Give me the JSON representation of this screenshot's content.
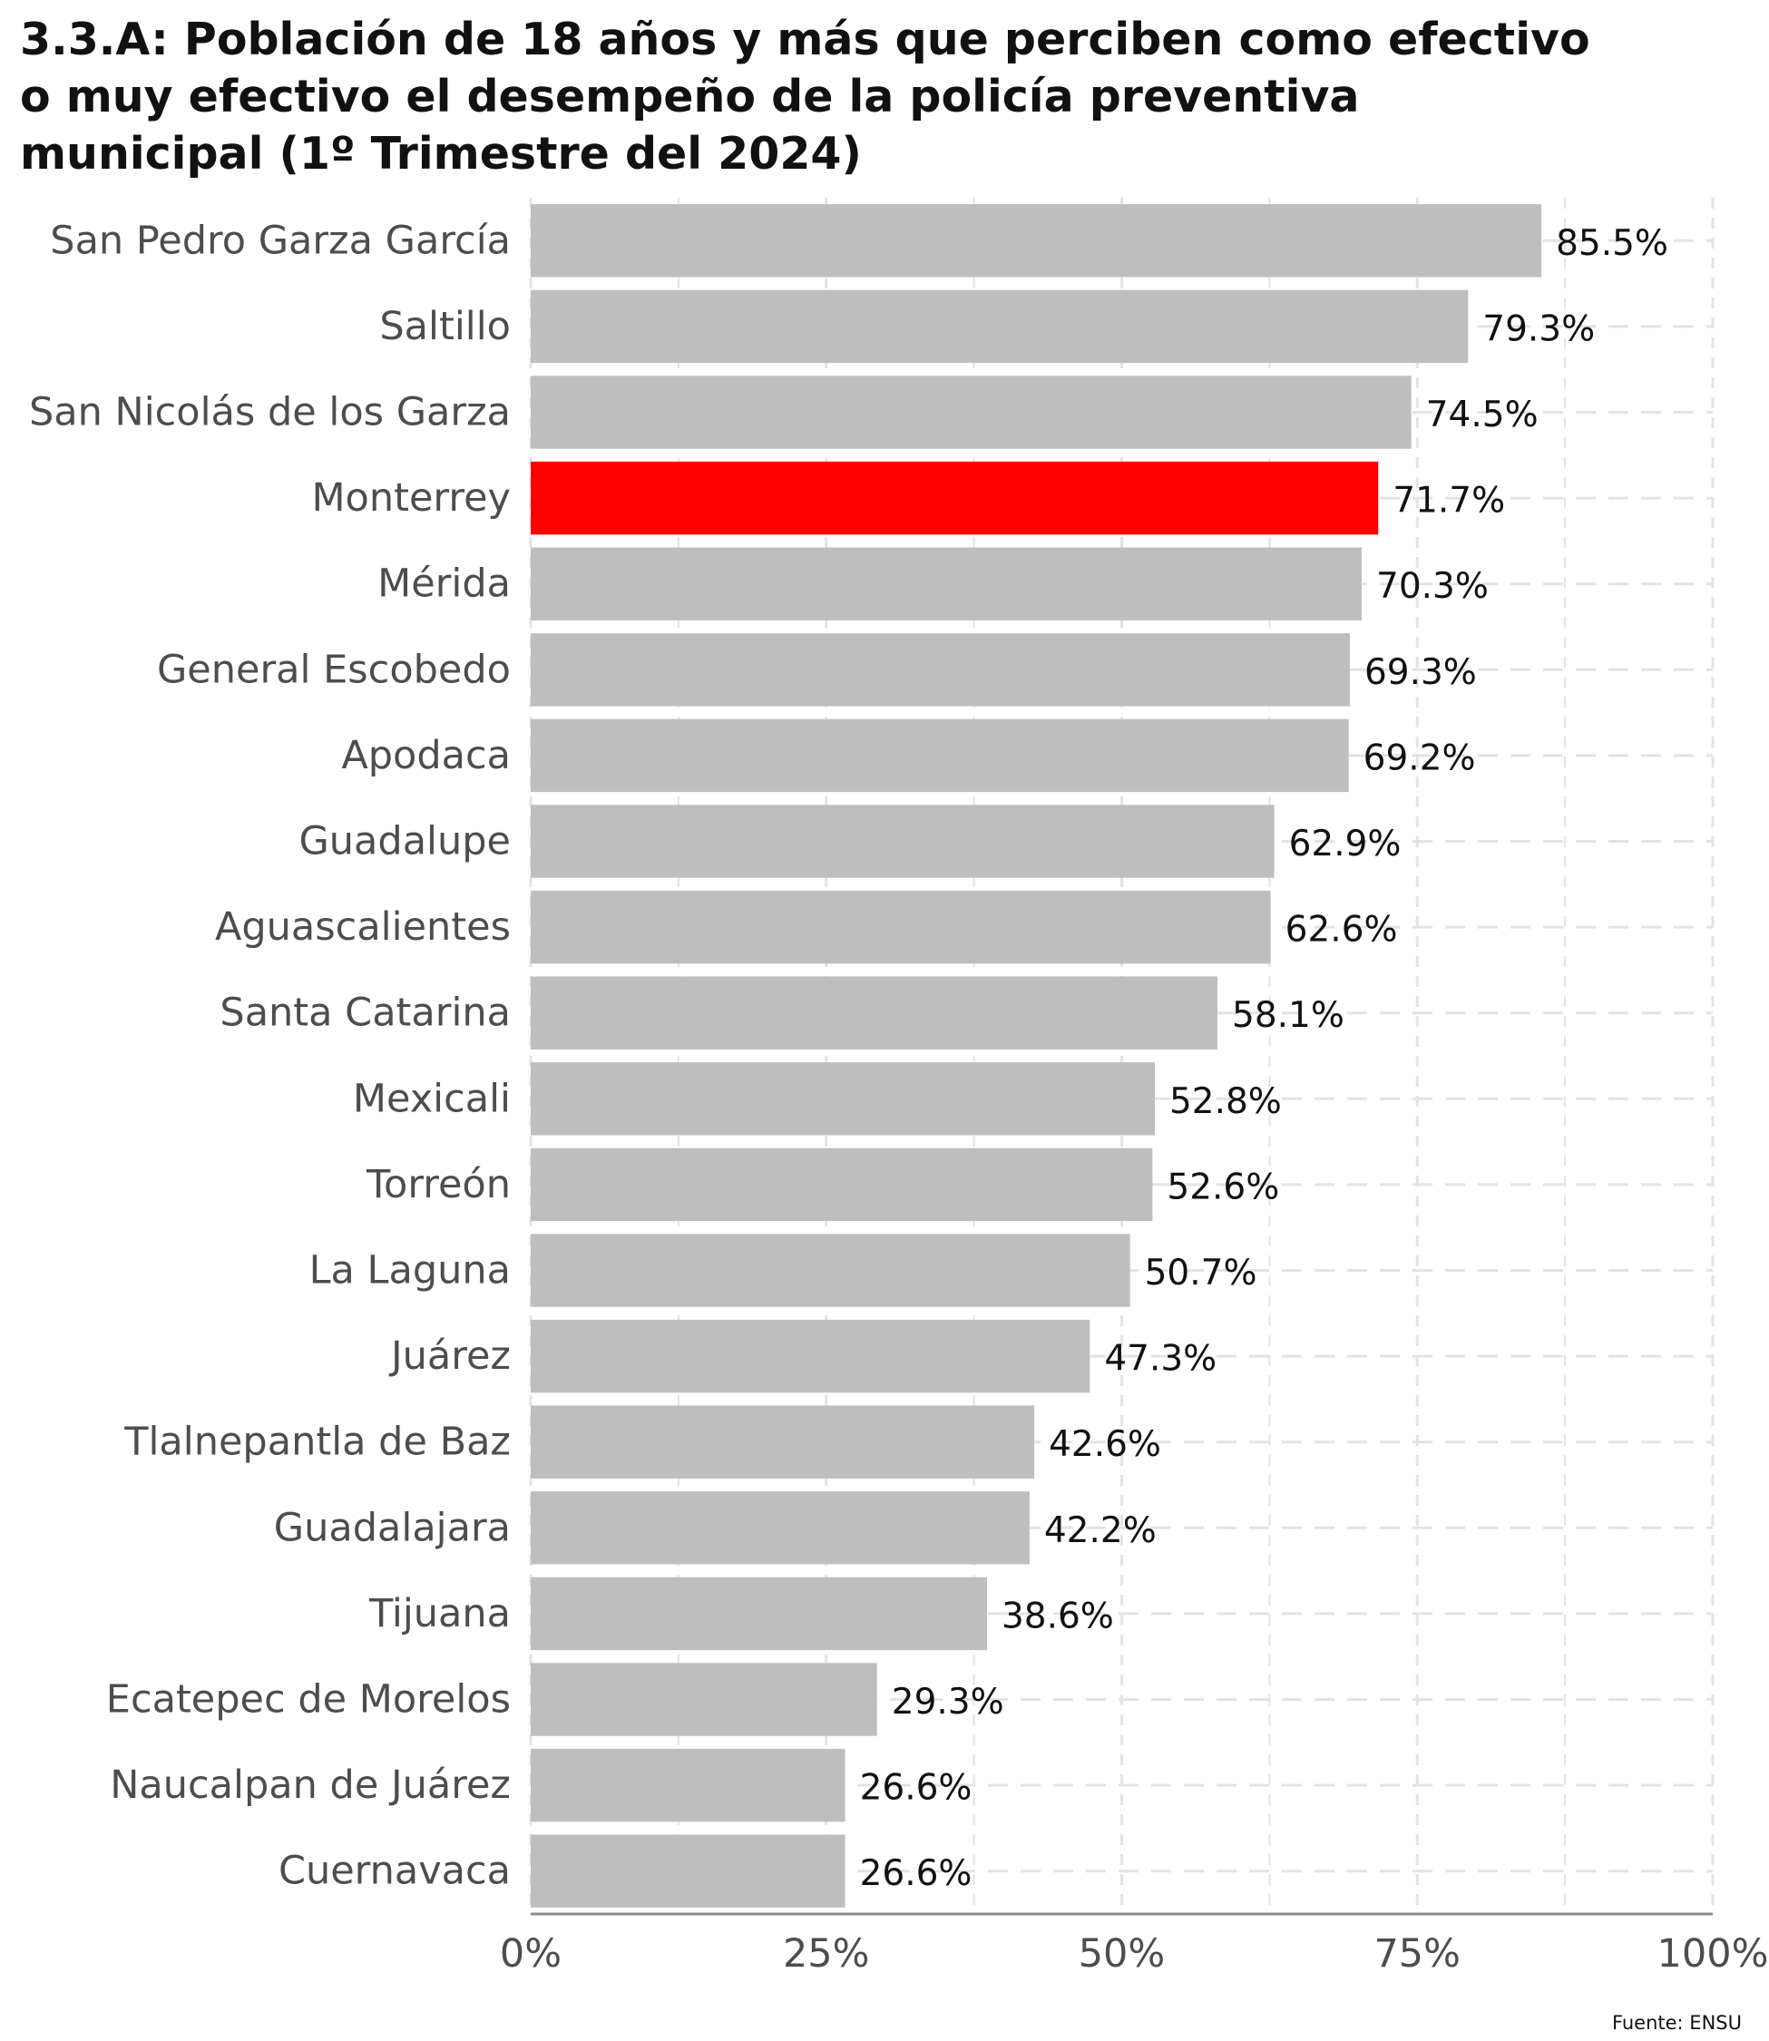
{
  "title_lines": [
    "3.3.A: Población de 18 años y más que perciben como efectivo",
    "o muy efectivo el desempeño de la policía preventiva",
    "municipal (1º Trimestre del 2024)"
  ],
  "source": "Fuente: ENSU",
  "colors": {
    "bar": "#bebebe",
    "highlight": "#ff0000",
    "label": "#4d4d4d",
    "value": "#111111",
    "grid": "#e3e3e3",
    "axis": "#8c8c8c"
  },
  "chart_data": {
    "type": "bar",
    "orientation": "horizontal",
    "title": "3.3.A: Población de 18 años y más que perciben como efectivo o muy efectivo el desempeño de la policía preventiva municipal (1º Trimestre del 2024)",
    "categories": [
      "San Pedro Garza García",
      "Saltillo",
      "San Nicolás de los Garza",
      "Monterrey",
      "Mérida",
      "General Escobedo",
      "Apodaca",
      "Guadalupe",
      "Aguascalientes",
      "Santa Catarina",
      "Mexicali",
      "Torreón",
      "La Laguna",
      "Juárez",
      "Tlalnepantla de Baz",
      "Guadalajara",
      "Tijuana",
      "Ecatepec de Morelos",
      "Naucalpan de Juárez",
      "Cuernavaca"
    ],
    "values": [
      85.5,
      79.3,
      74.5,
      71.7,
      70.3,
      69.3,
      69.2,
      62.9,
      62.6,
      58.1,
      52.8,
      52.6,
      50.7,
      47.3,
      42.6,
      42.2,
      38.6,
      29.3,
      26.6,
      26.6
    ],
    "value_labels": [
      "85.5%",
      "79.3%",
      "74.5%",
      "71.7%",
      "70.3%",
      "69.3%",
      "69.2%",
      "62.9%",
      "62.6%",
      "58.1%",
      "52.8%",
      "52.6%",
      "50.7%",
      "47.3%",
      "42.6%",
      "42.2%",
      "38.6%",
      "29.3%",
      "26.6%",
      "26.6%"
    ],
    "highlight": "Monterrey",
    "xlim": [
      0,
      100
    ],
    "xticks": [
      0,
      25,
      50,
      75,
      100
    ],
    "xtick_labels": [
      "0%",
      "25%",
      "50%",
      "75%",
      "100%"
    ],
    "xlabel": "",
    "ylabel": "",
    "grid": "dashed vertical"
  }
}
